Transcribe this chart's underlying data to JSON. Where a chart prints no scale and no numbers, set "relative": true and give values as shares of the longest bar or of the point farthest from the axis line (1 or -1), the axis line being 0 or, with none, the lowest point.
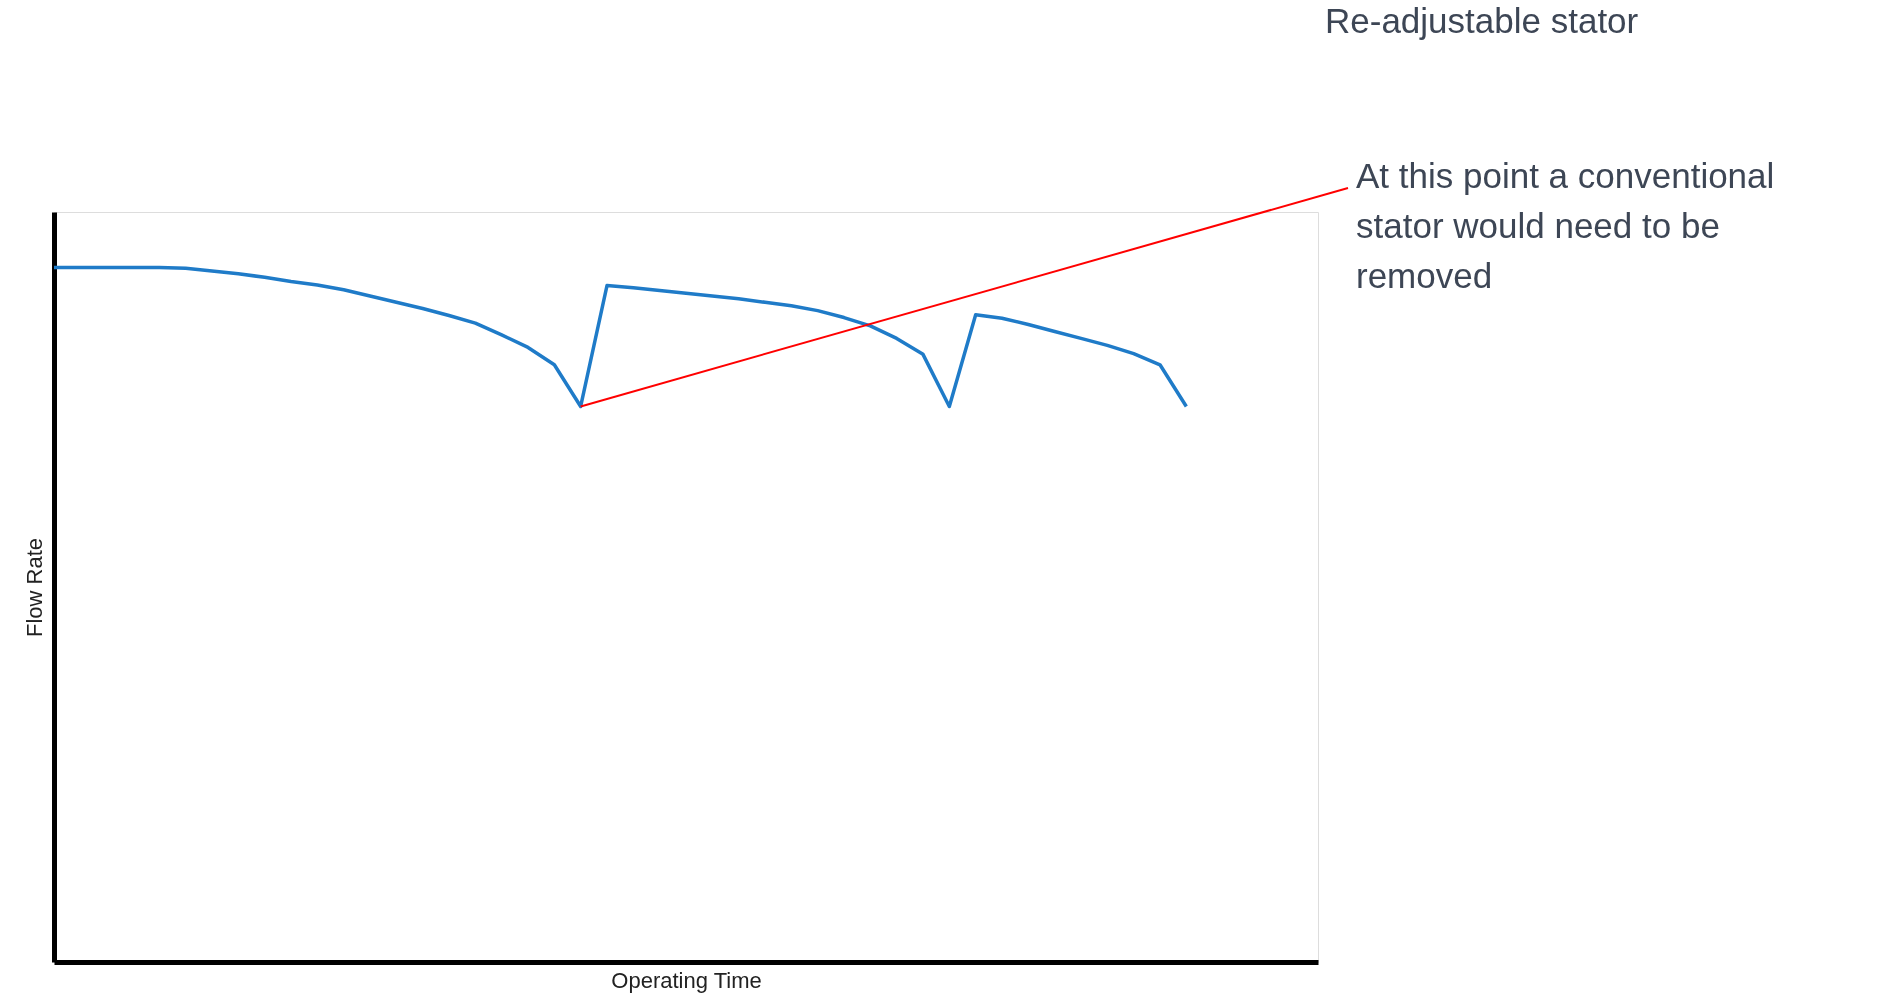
{
  "chart_data": {
    "type": "line",
    "relative": true,
    "title": "Re-adjustable stator",
    "xlabel": "Operating Time",
    "ylabel": "Flow Rate",
    "categories": [
      null,
      null,
      null,
      null,
      null,
      null,
      null,
      null,
      null,
      null,
      null,
      null,
      null,
      null,
      null,
      null,
      null,
      null,
      null,
      null,
      null,
      null,
      null,
      null,
      null,
      null,
      null,
      null,
      null,
      null,
      null,
      null,
      null,
      null,
      null,
      null,
      null,
      null,
      null,
      null,
      null,
      null,
      null,
      null,
      null,
      null,
      null,
      null,
      null
    ],
    "series": [
      {
        "color": "#1f7bc8",
        "values": [
          1.0,
          1.0,
          1.0,
          1.0,
          1.0,
          0.999,
          0.995,
          0.991,
          0.986,
          0.98,
          0.975,
          0.968,
          0.959,
          0.95,
          0.941,
          0.931,
          0.92,
          0.903,
          0.885,
          0.86,
          0.8,
          0.974,
          0.971,
          0.967,
          0.963,
          0.959,
          0.955,
          0.95,
          0.945,
          0.938,
          0.928,
          0.916,
          0.898,
          0.875,
          0.8,
          0.932,
          0.927,
          0.918,
          0.908,
          0.898,
          0.888,
          0.876,
          0.86,
          0.8,
          null,
          null,
          null,
          null,
          null
        ]
      }
    ],
    "annotations": [
      "At this point a conventional stator would need to be removed"
    ],
    "grid": false,
    "marker": "none",
    "line_style": "solid"
  }
}
